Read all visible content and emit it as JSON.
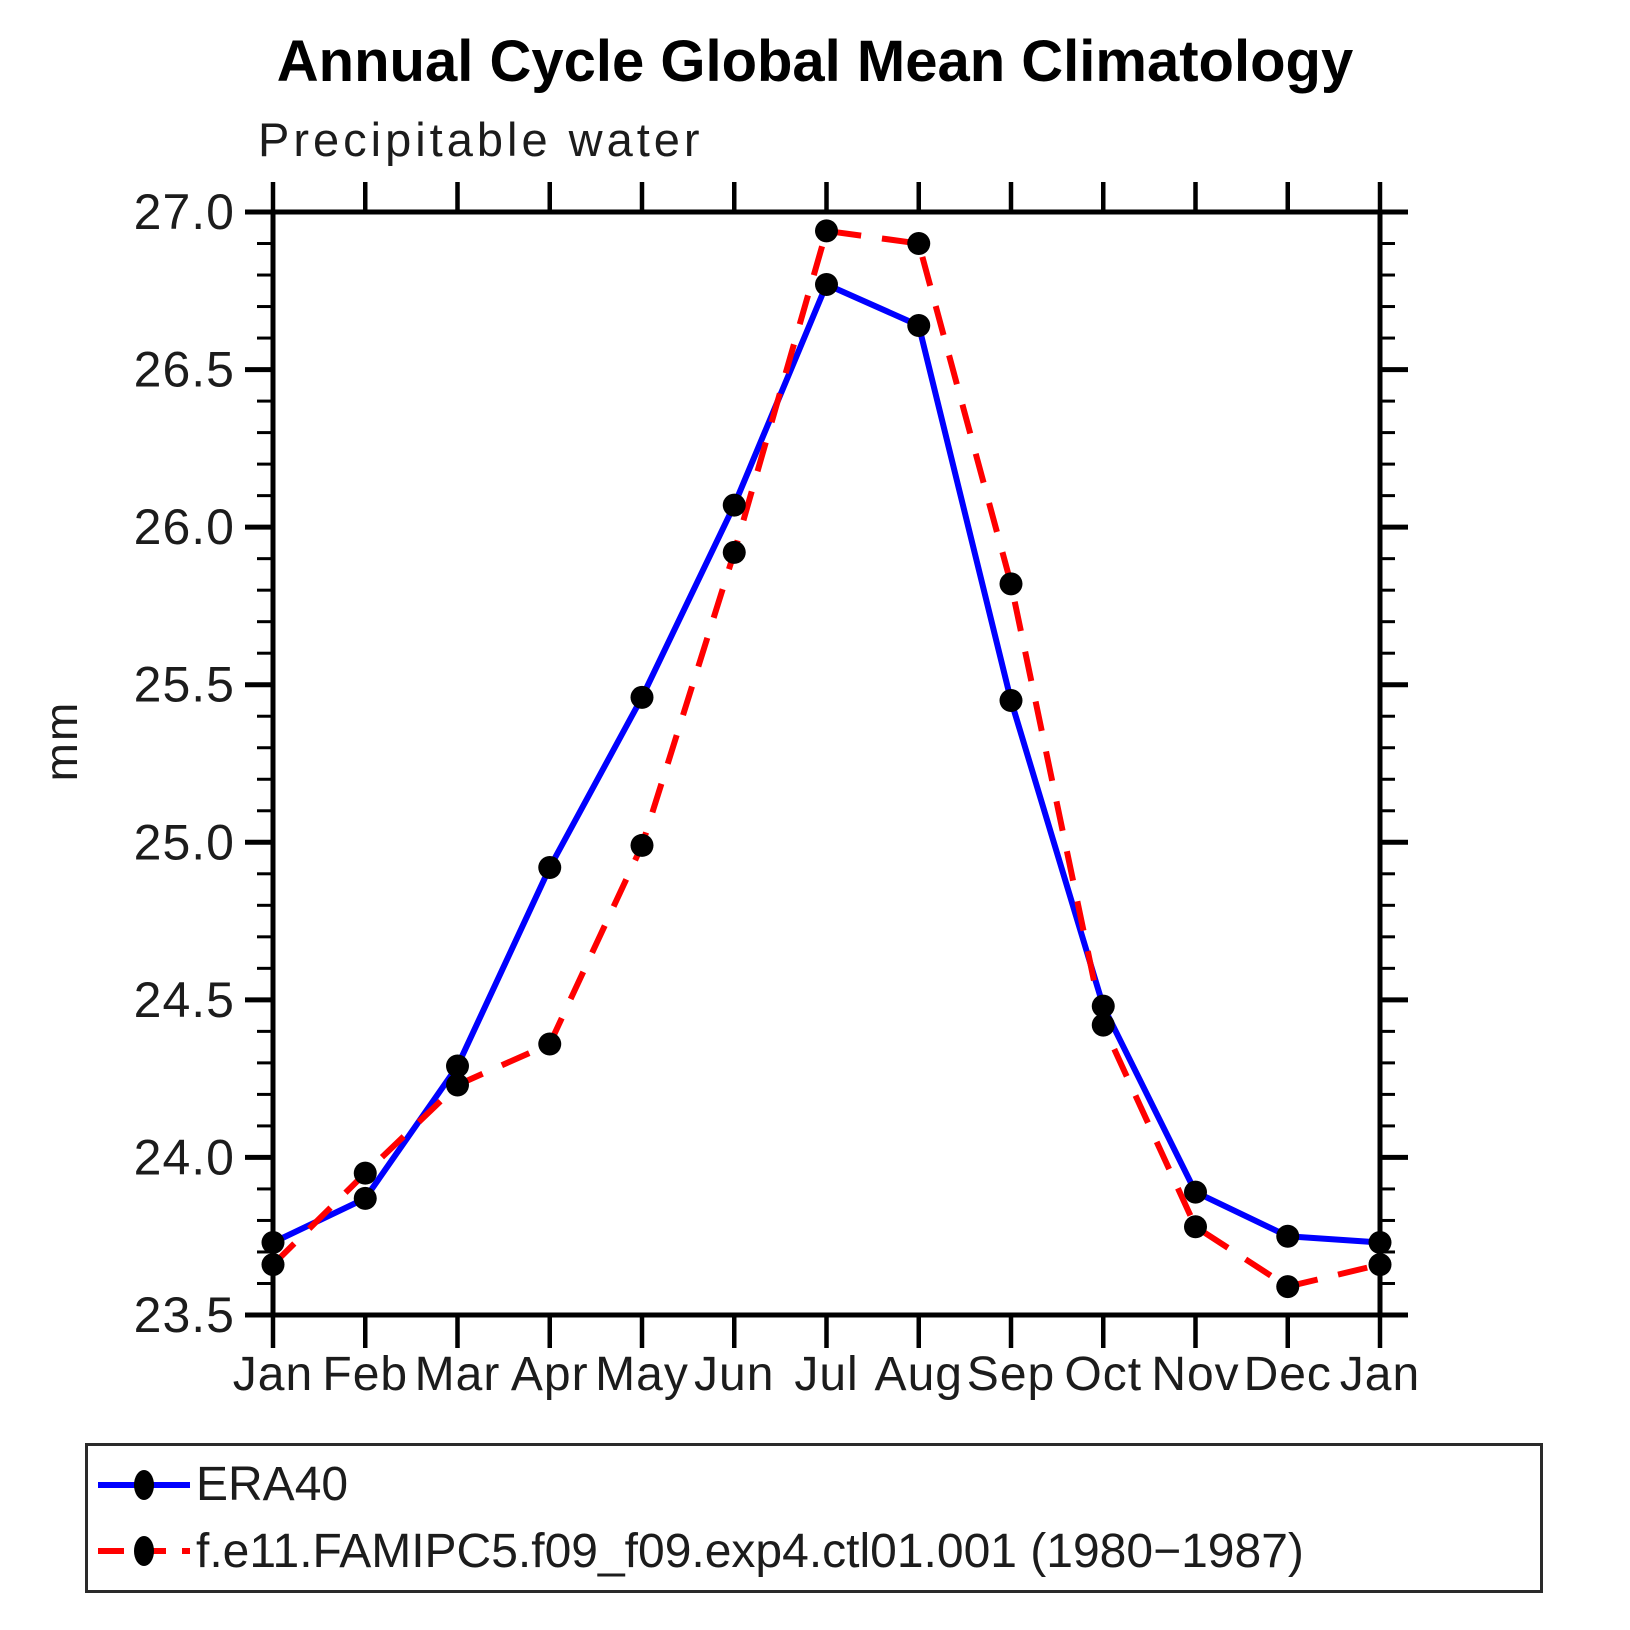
{
  "chart_data": {
    "type": "line",
    "title": "Annual Cycle Global Mean Climatology",
    "subtitle": "Precipitable water",
    "ylabel": "mm",
    "xlabel": "",
    "categories": [
      "Jan",
      "Feb",
      "Mar",
      "Apr",
      "May",
      "Jun",
      "Jul",
      "Aug",
      "Sep",
      "Oct",
      "Nov",
      "Dec",
      "Jan"
    ],
    "ylim": [
      23.5,
      27.0
    ],
    "ytick_labels": [
      "23.5",
      "24.0",
      "24.5",
      "25.0",
      "25.5",
      "26.0",
      "26.5",
      "27.0"
    ],
    "ytick_major_step": 0.5,
    "ytick_minor_step": 0.1,
    "grid": false,
    "legend_position": "bottom-left-box",
    "axis_color": "#000000",
    "marker_color": "#000000",
    "series": [
      {
        "name": "ERA40",
        "color": "#0000ff",
        "line_style": "solid",
        "marker": "filled-circle",
        "values": [
          23.73,
          23.87,
          24.29,
          24.92,
          25.46,
          26.07,
          26.77,
          26.64,
          25.45,
          24.48,
          23.89,
          23.75,
          23.73
        ]
      },
      {
        "name": "f.e11.FAMIPC5.f09_f09.exp4.ctl01.001 (1980−1987)",
        "color": "#ff0000",
        "line_style": "dashed",
        "marker": "filled-circle",
        "values": [
          23.66,
          23.95,
          24.23,
          24.36,
          24.99,
          25.92,
          26.94,
          26.9,
          25.82,
          24.42,
          23.78,
          23.59,
          23.66
        ]
      }
    ]
  }
}
